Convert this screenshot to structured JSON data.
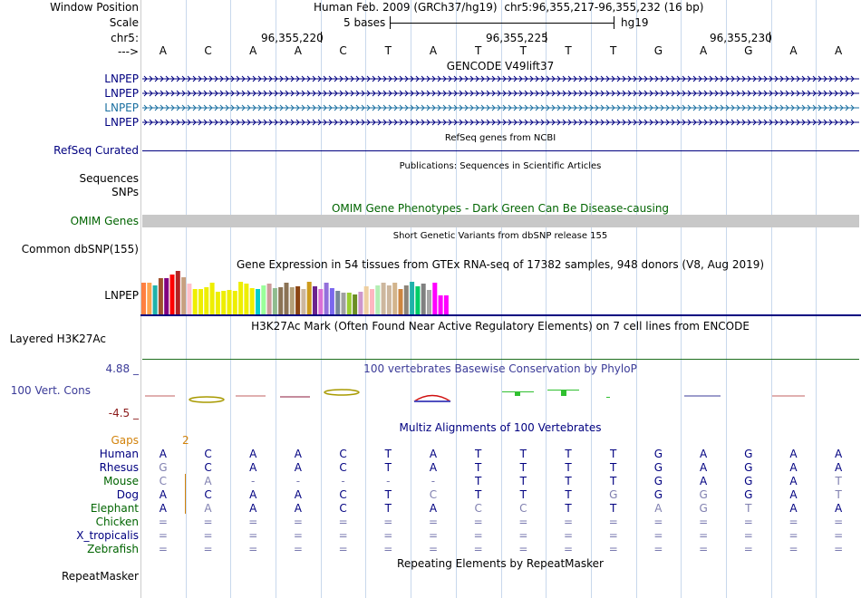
{
  "header": {
    "window_position_label": "Window Position",
    "scale_label": "Scale",
    "chr_label": "chr5:",
    "arrow_label": "--->",
    "assembly": "Human Feb. 2009 (GRCh37/hg19)",
    "position": "chr5:96,355,217-96,355,232 (16 bp)",
    "scale_text": "5 bases",
    "scale_db": "hg19",
    "ticks": [
      "96,355,220",
      "96,355,225",
      "96,355,230"
    ]
  },
  "bases": [
    "A",
    "C",
    "A",
    "A",
    "C",
    "T",
    "A",
    "T",
    "T",
    "T",
    "T",
    "G",
    "A",
    "G",
    "A",
    "A"
  ],
  "gencode": {
    "title": "GENCODE V49lift37",
    "genes": [
      "LNPEP",
      "LNPEP",
      "LNPEP",
      "LNPEP"
    ]
  },
  "refseq": {
    "label": "RefSeq Curated",
    "title": "RefSeq genes from NCBI"
  },
  "publications": {
    "title": "Publications: Sequences in Scientific Articles",
    "labels": [
      "Sequences",
      "SNPs"
    ]
  },
  "omim": {
    "label": "OMIM Genes",
    "title": "OMIM Gene Phenotypes - Dark Green Can Be Disease-causing"
  },
  "dbsnp": {
    "label": "Common dbSNP(155)",
    "title": "Short Genetic Variants from dbSNP release 155"
  },
  "gtex": {
    "label": "LNPEP",
    "title": "Gene Expression in 54 tissues from GTEx RNA-seq of 17382 samples, 948 donors (V8, Aug 2019)"
  },
  "h3k27ac": {
    "label": "Layered H3K27Ac",
    "title": "H3K27Ac Mark (Often Found Near Active Regulatory Elements) on 7 cell lines from ENCODE"
  },
  "phylop": {
    "label": "100 Vert. Cons",
    "max_label": "4.88 _",
    "min_label": "-4.5 _",
    "title": "100 vertebrates Basewise Conservation by PhyloP"
  },
  "multiz": {
    "title": "Multiz Alignments of 100 Vertebrates",
    "gaps_label": "Gaps",
    "gaps_value": "2",
    "species": [
      {
        "name": "Human",
        "seq": [
          "A",
          "C",
          "A",
          "A",
          "C",
          "T",
          "A",
          "T",
          "T",
          "T",
          "T",
          "G",
          "A",
          "G",
          "A",
          "A"
        ]
      },
      {
        "name": "Rhesus",
        "seq": [
          "G",
          "C",
          "A",
          "A",
          "C",
          "T",
          "A",
          "T",
          "T",
          "T",
          "T",
          "G",
          "A",
          "G",
          "A",
          "A"
        ]
      },
      {
        "name": "Mouse",
        "seq": [
          "C",
          "A",
          "-",
          "-",
          "-",
          "-",
          "-",
          "T",
          "T",
          "T",
          "T",
          "G",
          "A",
          "G",
          "A",
          "T"
        ]
      },
      {
        "name": "Dog",
        "seq": [
          "A",
          "C",
          "A",
          "A",
          "C",
          "T",
          "C",
          "T",
          "T",
          "T",
          "G",
          "G",
          "G",
          "G",
          "A",
          "T"
        ]
      },
      {
        "name": "Elephant",
        "seq": [
          "A",
          "A",
          "A",
          "A",
          "C",
          "T",
          "A",
          "C",
          "C",
          "T",
          "T",
          "A",
          "G",
          "T",
          "A",
          "A"
        ]
      },
      {
        "name": "Chicken",
        "seq": [
          "=",
          "=",
          "=",
          "=",
          "=",
          "=",
          "=",
          "=",
          "=",
          "=",
          "=",
          "=",
          "=",
          "=",
          "=",
          "="
        ]
      },
      {
        "name": "X_tropicalis",
        "seq": [
          "=",
          "=",
          "=",
          "=",
          "=",
          "=",
          "=",
          "=",
          "=",
          "=",
          "=",
          "=",
          "=",
          "=",
          "=",
          "="
        ]
      },
      {
        "name": "Zebrafish",
        "seq": [
          "=",
          "=",
          "=",
          "=",
          "=",
          "=",
          "=",
          "=",
          "=",
          "=",
          "=",
          "=",
          "=",
          "=",
          "=",
          "="
        ]
      }
    ]
  },
  "repeatmasker": {
    "label": "RepeatMasker",
    "title": "Repeating Elements by RepeatMasker"
  },
  "colors": {
    "navy": "#000080",
    "green_label": "#006400",
    "omim_bar": "#c8c8c8",
    "gaps_orange": "#d2820a",
    "grid": "#c8d8ec",
    "phylop_blue": "#3b3b98",
    "phylop_red": "#8b1a1a",
    "h3k_line": "#1e6e1e"
  },
  "chart_data": {
    "type": "bar",
    "title": "Gene Expression in 54 tissues from GTEx RNA-seq of 17382 samples, 948 donors (V8, Aug 2019)",
    "ylim": [
      0,
      48
    ],
    "values": [
      35,
      35,
      32,
      40,
      40,
      44,
      48,
      41,
      34,
      28,
      28,
      30,
      35,
      25,
      26,
      27,
      26,
      36,
      34,
      29,
      28,
      32,
      34,
      29,
      30,
      35,
      30,
      31,
      28,
      36,
      31,
      28,
      35,
      29,
      26,
      24,
      24,
      22,
      25,
      31,
      28,
      32,
      35,
      32,
      35,
      28,
      32,
      36,
      31,
      34,
      27,
      35,
      21,
      21
    ],
    "colors": [
      "#ff8040",
      "#ffa54f",
      "#20b2aa",
      "#a0522d",
      "#800080",
      "#ff0000",
      "#b22222",
      "#c8a080",
      "#ffc0cb",
      "#eeee00",
      "#eeee00",
      "#eeee00",
      "#eeee00",
      "#eeee00",
      "#eeee00",
      "#eeee00",
      "#eeee00",
      "#eeee00",
      "#eeee00",
      "#eeee00",
      "#00cdcd",
      "#9aff9a",
      "#cd9b9b",
      "#8fbc8f",
      "#8b7355",
      "#8b7355",
      "#b4a078",
      "#8b4513",
      "#cdb79e",
      "#cd9b1d",
      "#6b238e",
      "#da70d6",
      "#9370db",
      "#7a67ee",
      "#778899",
      "#a0a0a0",
      "#9acd32",
      "#6b8e23",
      "#cd96cd",
      "#eecfa1",
      "#ffb6c1",
      "#b4eeb4",
      "#cdb79e",
      "#cdb79e",
      "#d2b48c",
      "#cd853f",
      "#8b8378",
      "#20b2aa",
      "#00cd66",
      "#808080",
      "#a6a6a6",
      "#ff00ff",
      "#ff00ff",
      "#ff00ff"
    ]
  }
}
